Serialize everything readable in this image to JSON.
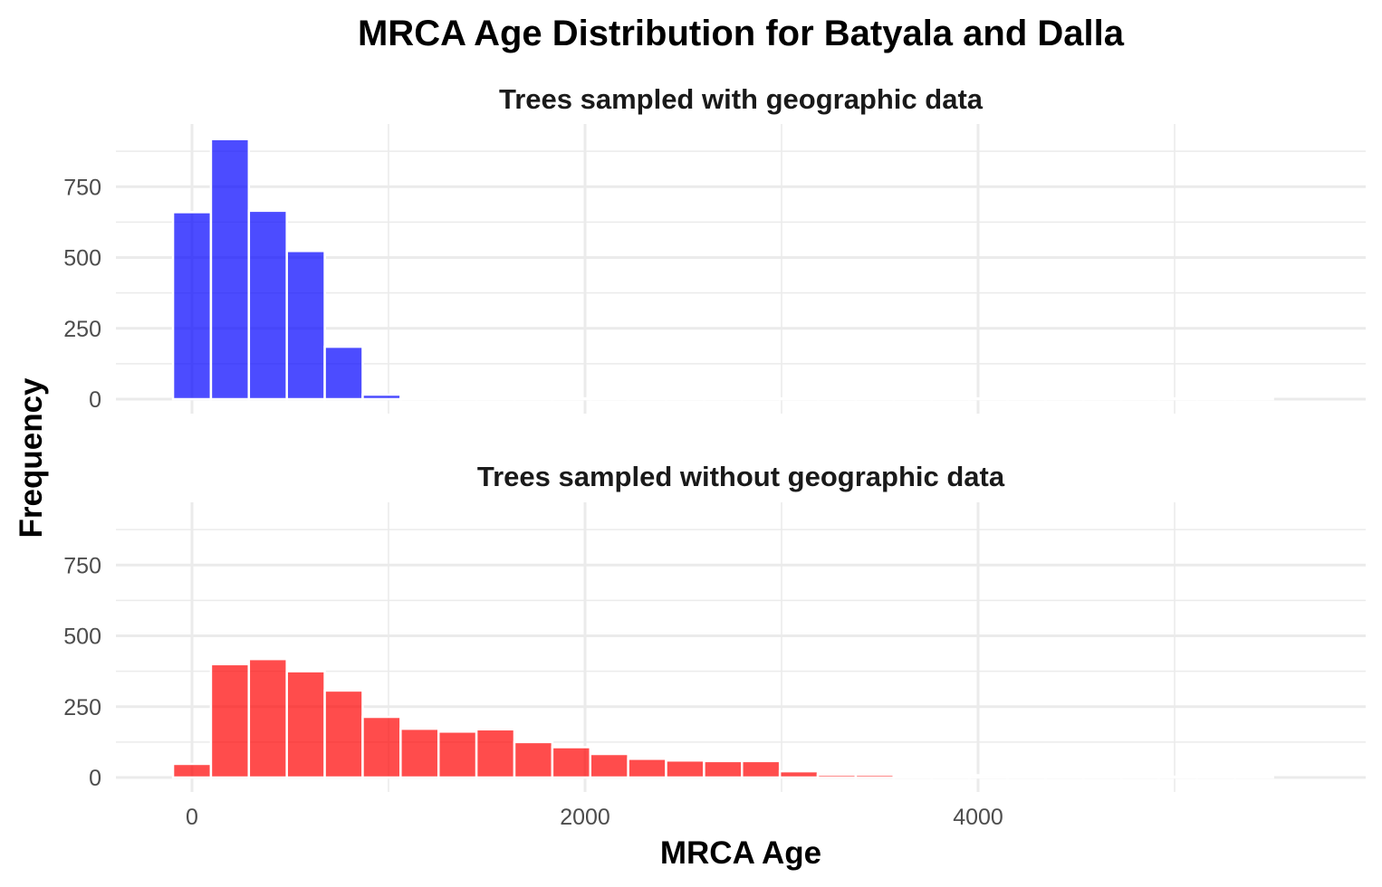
{
  "chart_data": {
    "type": "bar",
    "title": "MRCA Age Distribution for Batyala and Dalla",
    "xlabel": "MRCA Age",
    "ylabel": "Frequency",
    "xlim": [
      -380,
      5980
    ],
    "ylim": [
      0,
      950
    ],
    "x_ticks": [
      0,
      2000,
      4000
    ],
    "x_tick_labels": [
      "0",
      "2000",
      "4000"
    ],
    "y_ticks": [
      0,
      250,
      500,
      750
    ],
    "y_tick_labels": [
      "0",
      "250",
      "500",
      "750"
    ],
    "bin_width": 193,
    "grid": true,
    "legend": "none",
    "panels": [
      {
        "strip_label": "Trees sampled with geographic data",
        "color": "#0000FF",
        "bins": [
          {
            "x": 0,
            "y": 660
          },
          {
            "x": 193,
            "y": 918
          },
          {
            "x": 386,
            "y": 665
          },
          {
            "x": 579,
            "y": 523
          },
          {
            "x": 772,
            "y": 185
          },
          {
            "x": 965,
            "y": 16
          },
          {
            "x": 1158,
            "y": 2
          },
          {
            "x": 1351,
            "y": 1
          },
          {
            "x": 1544,
            "y": 1
          },
          {
            "x": 1737,
            "y": 1
          },
          {
            "x": 1930,
            "y": 0
          },
          {
            "x": 2123,
            "y": 0
          },
          {
            "x": 2316,
            "y": 0
          },
          {
            "x": 2509,
            "y": 1
          },
          {
            "x": 2702,
            "y": 0
          },
          {
            "x": 2895,
            "y": 0
          },
          {
            "x": 3088,
            "y": 0
          },
          {
            "x": 3281,
            "y": 0
          },
          {
            "x": 3474,
            "y": 0
          },
          {
            "x": 3667,
            "y": 0
          },
          {
            "x": 3860,
            "y": 0
          },
          {
            "x": 4053,
            "y": 0
          },
          {
            "x": 4246,
            "y": 0
          },
          {
            "x": 4439,
            "y": 0
          },
          {
            "x": 4632,
            "y": 0
          },
          {
            "x": 4825,
            "y": 0
          },
          {
            "x": 5018,
            "y": 0
          },
          {
            "x": 5211,
            "y": 0
          },
          {
            "x": 5404,
            "y": 0
          }
        ]
      },
      {
        "strip_label": "Trees sampled without geographic data",
        "color": "#FF0000",
        "bins": [
          {
            "x": 0,
            "y": 48
          },
          {
            "x": 193,
            "y": 400
          },
          {
            "x": 386,
            "y": 418
          },
          {
            "x": 579,
            "y": 375
          },
          {
            "x": 772,
            "y": 307
          },
          {
            "x": 965,
            "y": 214
          },
          {
            "x": 1158,
            "y": 172
          },
          {
            "x": 1351,
            "y": 162
          },
          {
            "x": 1544,
            "y": 170
          },
          {
            "x": 1737,
            "y": 125
          },
          {
            "x": 1930,
            "y": 107
          },
          {
            "x": 2123,
            "y": 83
          },
          {
            "x": 2316,
            "y": 66
          },
          {
            "x": 2509,
            "y": 60
          },
          {
            "x": 2702,
            "y": 58
          },
          {
            "x": 2895,
            "y": 58
          },
          {
            "x": 3088,
            "y": 22
          },
          {
            "x": 3281,
            "y": 10
          },
          {
            "x": 3474,
            "y": 10
          },
          {
            "x": 3667,
            "y": 5
          },
          {
            "x": 3860,
            "y": 5
          },
          {
            "x": 4053,
            "y": 8
          },
          {
            "x": 4246,
            "y": 2
          },
          {
            "x": 4439,
            "y": 5
          },
          {
            "x": 4632,
            "y": 2
          },
          {
            "x": 4825,
            "y": 1
          },
          {
            "x": 5018,
            "y": 1
          },
          {
            "x": 5211,
            "y": 1
          },
          {
            "x": 5404,
            "y": 2
          }
        ]
      }
    ]
  }
}
